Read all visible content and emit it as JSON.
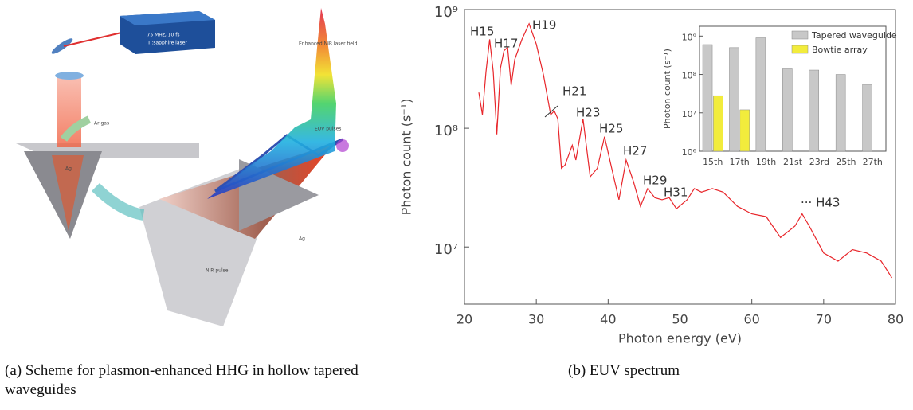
{
  "figure": {
    "panel_a": {
      "laser_rate": "75 MHz, 10 fs",
      "laser_name": "Ti:sapphire laser",
      "field_label": "Enhanced NIR laser field",
      "euv_label": "EUV pulses",
      "gas_label": "Ar gas",
      "metal_top": "Ag",
      "metal_bottom": "Ag",
      "pulse_label": "NIR pulse",
      "caption": "(a) Scheme for plasmon-enhanced HHG in hollow tapered waveguides"
    },
    "panel_b": {
      "caption": "(b) EUV spectrum"
    }
  },
  "chart_data": [
    {
      "type": "line",
      "xlabel": "Photon energy (eV)",
      "ylabel": "Photon count (s⁻¹)",
      "color": "#e8262b",
      "log_y": true,
      "grid": false,
      "xlim": [
        20,
        80
      ],
      "xticks": [
        20,
        30,
        40,
        50,
        60,
        70,
        80
      ],
      "ylim": [
        3300000,
        1000000000
      ],
      "yticks": [
        {
          "value": 10000000,
          "label": "10⁷"
        },
        {
          "value": 100000000,
          "label": "10⁸"
        },
        {
          "value": 1000000000,
          "label": "10⁹"
        }
      ],
      "x": [
        22,
        22.5,
        23,
        23.5,
        24,
        24.5,
        25,
        25.5,
        26,
        26.5,
        27,
        28,
        29,
        30,
        31,
        32,
        32.5,
        33,
        33.5,
        34,
        35,
        35.5,
        36.5,
        37.5,
        38.5,
        39.5,
        40.5,
        41.5,
        42.5,
        43.5,
        44.5,
        45.5,
        46.5,
        47.5,
        48.5,
        49.5,
        51,
        52,
        53,
        54.5,
        56,
        58,
        60,
        62,
        64,
        66,
        67,
        68,
        70,
        72,
        74,
        76,
        78,
        79.5
      ],
      "values": [
        200000000.0,
        130000000.0,
        300000000.0,
        560000000.0,
        300000000.0,
        89000000.0,
        320000000.0,
        450000000.0,
        480000000.0,
        230000000.0,
        380000000.0,
        560000000.0,
        760000000.0,
        510000000.0,
        280000000.0,
        130000000.0,
        140000000.0,
        120000000.0,
        46000000.0,
        49000000.0,
        72000000.0,
        54000000.0,
        120000000.0,
        39000000.0,
        46000000.0,
        85000000.0,
        46000000.0,
        25000000.0,
        54000000.0,
        36000000.0,
        22000000.0,
        31000000.0,
        26000000.0,
        25000000.0,
        26000000.0,
        21000000.0,
        25000000.0,
        31000000.0,
        29000000.0,
        31000000.0,
        29000000.0,
        22000000.0,
        19000000.0,
        18000000.0,
        12000000.0,
        15000000.0,
        19000000.0,
        15000000.0,
        8900000.0,
        7600000.0,
        9500000.0,
        8900000.0,
        7600000.0,
        5500000.0
      ],
      "annotations": [
        "H15",
        "H17",
        "H19",
        "H21",
        "H23",
        "H25",
        "H27",
        "H29",
        "H31",
        "··· H43"
      ]
    },
    {
      "type": "bar",
      "ylabel": "Photon count (s⁻¹)",
      "log_y": true,
      "legend": "upper-right",
      "categories": [
        "15th",
        "17th",
        "19th",
        "21st",
        "23rd",
        "25th",
        "27th"
      ],
      "ylim": [
        1000000,
        1800000000
      ],
      "yticks": [
        {
          "value": 1000000,
          "label": "10⁶"
        },
        {
          "value": 10000000,
          "label": "10⁷"
        },
        {
          "value": 100000000,
          "label": "10⁸"
        },
        {
          "value": 1000000000,
          "label": "10⁹"
        }
      ],
      "series": [
        {
          "name": "Tapered waveguide",
          "color": "#c8c8c8",
          "values": [
            600000000.0,
            500000000.0,
            900000000.0,
            140000000.0,
            130000000.0,
            100000000.0,
            55000000.0
          ]
        },
        {
          "name": "Bowtie array",
          "color": "#f2ec3c",
          "values": [
            28000000.0,
            12000000.0,
            null,
            null,
            null,
            null,
            null
          ]
        }
      ]
    }
  ]
}
